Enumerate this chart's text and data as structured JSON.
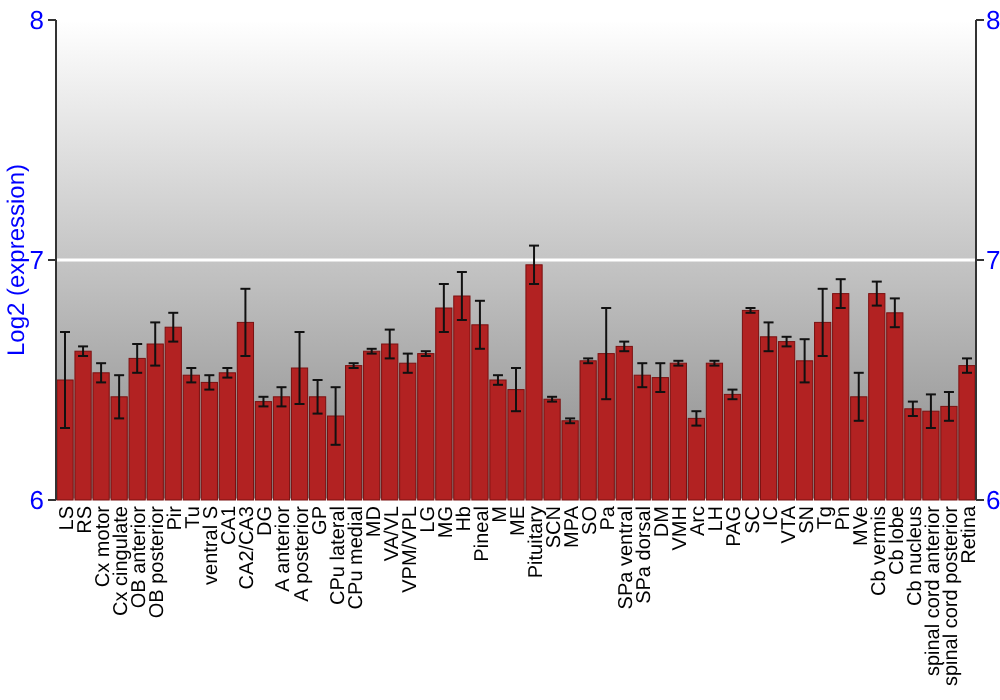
{
  "chart_data": {
    "type": "bar",
    "ylabel": "Log2 (expression)",
    "categories": [
      "LS",
      "RS",
      "Cx motor",
      "Cx cingulate",
      "OB anterior",
      "OB posterior",
      "Pir",
      "Tu",
      "ventral S",
      "CA1",
      "CA2/CA3",
      "DG",
      "A anterior",
      "A posterior",
      "GP",
      "CPu lateral",
      "CPu medial",
      "MD",
      "VA/VL",
      "VPM/VPL",
      "LG",
      "MG",
      "Hb",
      "Pineal",
      "M",
      "ME",
      "Pituitary",
      "SCN",
      "MPA",
      "SO",
      "Pa",
      "SPa ventral",
      "SPa dorsal",
      "DM",
      "VMH",
      "Arc",
      "LH",
      "PAG",
      "SC",
      "IC",
      "VTA",
      "SN",
      "Tg",
      "Pn",
      "MVe",
      "Cb vermis",
      "Cb lobe",
      "Cb nucleus",
      "spinal cord anterior",
      "spinal cord posterior",
      "Retina"
    ],
    "values": [
      6.5,
      6.62,
      6.53,
      6.43,
      6.59,
      6.65,
      6.72,
      6.52,
      6.49,
      6.53,
      6.74,
      6.41,
      6.43,
      6.55,
      6.43,
      6.35,
      6.56,
      6.62,
      6.65,
      6.57,
      6.61,
      6.8,
      6.85,
      6.73,
      6.5,
      6.46,
      6.98,
      6.42,
      6.33,
      6.58,
      6.61,
      6.64,
      6.52,
      6.51,
      6.57,
      6.34,
      6.57,
      6.44,
      6.79,
      6.68,
      6.66,
      6.58,
      6.74,
      6.86,
      6.43,
      6.86,
      6.78,
      6.38,
      6.37,
      6.39,
      6.56
    ],
    "errors": [
      0.2,
      0.02,
      0.04,
      0.09,
      0.06,
      0.09,
      0.06,
      0.03,
      0.03,
      0.02,
      0.14,
      0.02,
      0.04,
      0.15,
      0.07,
      0.12,
      0.01,
      0.01,
      0.06,
      0.04,
      0.01,
      0.1,
      0.1,
      0.1,
      0.02,
      0.09,
      0.08,
      0.01,
      0.01,
      0.01,
      0.19,
      0.02,
      0.05,
      0.06,
      0.01,
      0.03,
      0.01,
      0.02,
      0.01,
      0.06,
      0.02,
      0.09,
      0.14,
      0.06,
      0.1,
      0.05,
      0.06,
      0.03,
      0.07,
      0.06,
      0.03
    ],
    "color": "#b22222",
    "ylim": [
      6,
      8
    ],
    "yticks": [
      6,
      7,
      8
    ],
    "y2lim": [
      6,
      8
    ],
    "y2ticks": [
      6,
      7,
      8
    ],
    "grid": "y"
  }
}
